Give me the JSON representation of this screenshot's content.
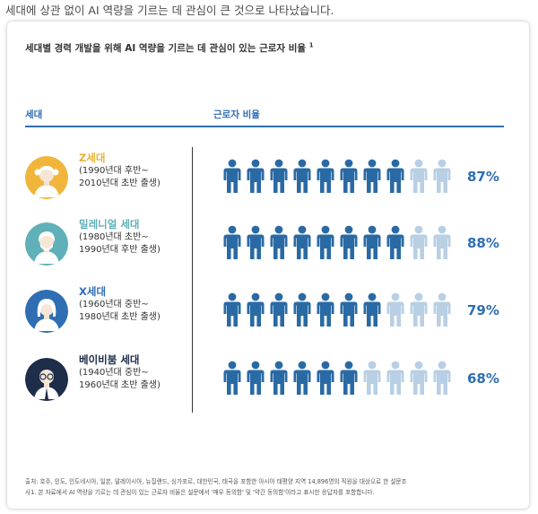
{
  "intro": "세대에 상관 없이 AI 역량을 기르는 데 관심이 큰 것으로 나타났습니다.",
  "card_title": "세대별 경력 개발을 위해 AI 역량을 기르는 데 관심이 있는 근로자 비율",
  "card_title_sup": "1",
  "headers": {
    "generation": "세대",
    "percentage": "근로자 비율"
  },
  "colors": {
    "primary": "#2f6eb3",
    "figure_full": "#2a6aa4",
    "figure_empty": "#b8cfe4"
  },
  "chart_data": {
    "type": "pictograph",
    "title": "세대별 경력 개발을 위해 AI 역량을 기르는 데 관심이 있는 근로자 비율",
    "ylabel": "근로자 비율",
    "xlabel": "세대",
    "icons_per_row": 10,
    "categories": [
      "Z세대",
      "밀레니얼 세대",
      "X세대",
      "베이비붐 세대"
    ],
    "values": [
      87,
      88,
      79,
      68
    ],
    "unit": "%",
    "rows": [
      {
        "name": "Z세대",
        "name_color": "#e9b13a",
        "sub1": "(1990년대 후반~",
        "sub2": "2010년대 초반 출생)",
        "value": 87,
        "label": "87%",
        "avatar_bg": "#f2b53c",
        "avatar": "z-gen-avatar"
      },
      {
        "name": "밀레니얼 세대",
        "name_color": "#5fb0b8",
        "sub1": "(1980년대 초반~",
        "sub2": "1990년대 후반 출생)",
        "value": 88,
        "label": "88%",
        "avatar_bg": "#5fb0b8",
        "avatar": "millennial-avatar"
      },
      {
        "name": "X세대",
        "name_color": "#2f6eb3",
        "sub1": "(1960년대 중반~",
        "sub2": "1980년대 초반 출생)",
        "value": 79,
        "label": "79%",
        "avatar_bg": "#2f6eb3",
        "avatar": "gen-x-avatar"
      },
      {
        "name": "베이비붐 세대",
        "name_color": "#1d2d4a",
        "sub1": "(1940년대 중반~",
        "sub2": "1960년대 초반 출생)",
        "value": 68,
        "label": "68%",
        "avatar_bg": "#1d2d4a",
        "avatar": "baby-boomer-avatar"
      }
    ]
  },
  "footnotes": [
    "출처: 호주, 인도, 인도네시아, 일본, 말레이시아, 뉴질랜드, 싱가포르, 대한민국, 태국을 포함한 아시아 태평양 지역 14,896명의 직원을 대상으로 한 설문조",
    "사1. 본 자료에서 AI 역량을 기르는 데 관심이 있는 근로자 비율은 설문에서 '매우 동의함' 및 '약간 동의함'이라고 표시한 응답자를 포함합니다."
  ]
}
